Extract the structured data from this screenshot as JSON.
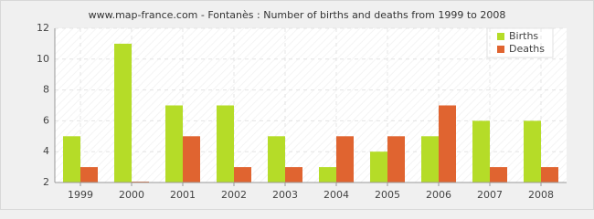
{
  "chart_data": {
    "type": "bar",
    "title": "www.map-france.com - Fontanès : Number of births and deaths from 1999 to 2008",
    "categories": [
      "1999",
      "2000",
      "2001",
      "2002",
      "2003",
      "2004",
      "2005",
      "2006",
      "2007",
      "2008"
    ],
    "series": [
      {
        "name": "Births",
        "color": "#b5dc28",
        "values": [
          5,
          11,
          7,
          7,
          5,
          3,
          4,
          5,
          6,
          6
        ]
      },
      {
        "name": "Deaths",
        "color": "#e06430",
        "values": [
          3,
          2,
          5,
          3,
          3,
          5,
          5,
          7,
          3,
          3
        ]
      }
    ],
    "ylim": [
      2,
      12
    ],
    "yticks": [
      2,
      4,
      6,
      8,
      10,
      12
    ],
    "grid": true,
    "legend": "top-right"
  }
}
